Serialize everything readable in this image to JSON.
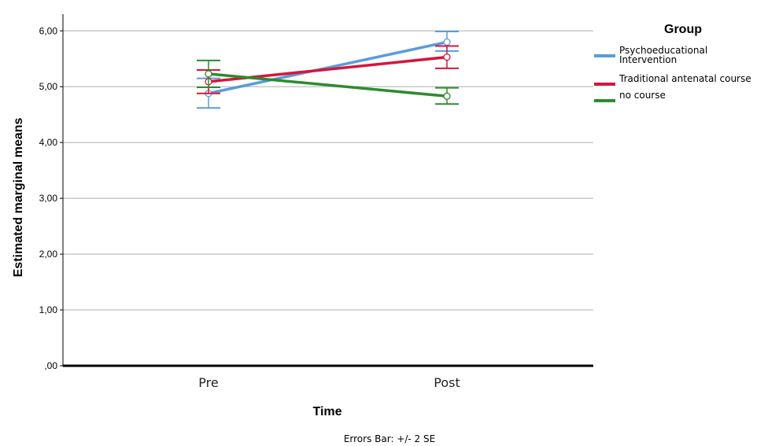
{
  "chart_data": {
    "type": "line",
    "xlabel": "Time",
    "ylabel": "Estimated marginal means",
    "categories": [
      "Pre",
      "Post"
    ],
    "ylim": [
      0,
      6.3
    ],
    "yticks": [
      0,
      1,
      2,
      3,
      4,
      5,
      6
    ],
    "ytick_labels": [
      ",00",
      "1,00",
      "2,00",
      "3,00",
      "4,00",
      "5,00",
      "6,00"
    ],
    "grid": true,
    "legend": {
      "title": "Group",
      "position": "right"
    },
    "footnote": "Errors Bar: +/- 2 SE",
    "series": [
      {
        "name": "Psychoeducational Intervention",
        "name_lines": [
          "Psychoeducational",
          "Intervention"
        ],
        "color": "#5b9bdc",
        "values": [
          4.88,
          5.8
        ],
        "error_low": [
          4.62,
          5.64
        ],
        "error_high": [
          5.15,
          5.99
        ]
      },
      {
        "name": "Traditional antenatal course",
        "name_lines": [
          "Traditional antenatal course"
        ],
        "color": "#d4163c",
        "values": [
          5.09,
          5.53
        ],
        "error_low": [
          4.88,
          5.33
        ],
        "error_high": [
          5.3,
          5.73
        ]
      },
      {
        "name": "no course",
        "name_lines": [
          "no course"
        ],
        "color": "#2e8b2e",
        "values": [
          5.23,
          4.83
        ],
        "error_low": [
          4.99,
          4.69
        ],
        "error_high": [
          5.47,
          4.98
        ]
      }
    ]
  }
}
